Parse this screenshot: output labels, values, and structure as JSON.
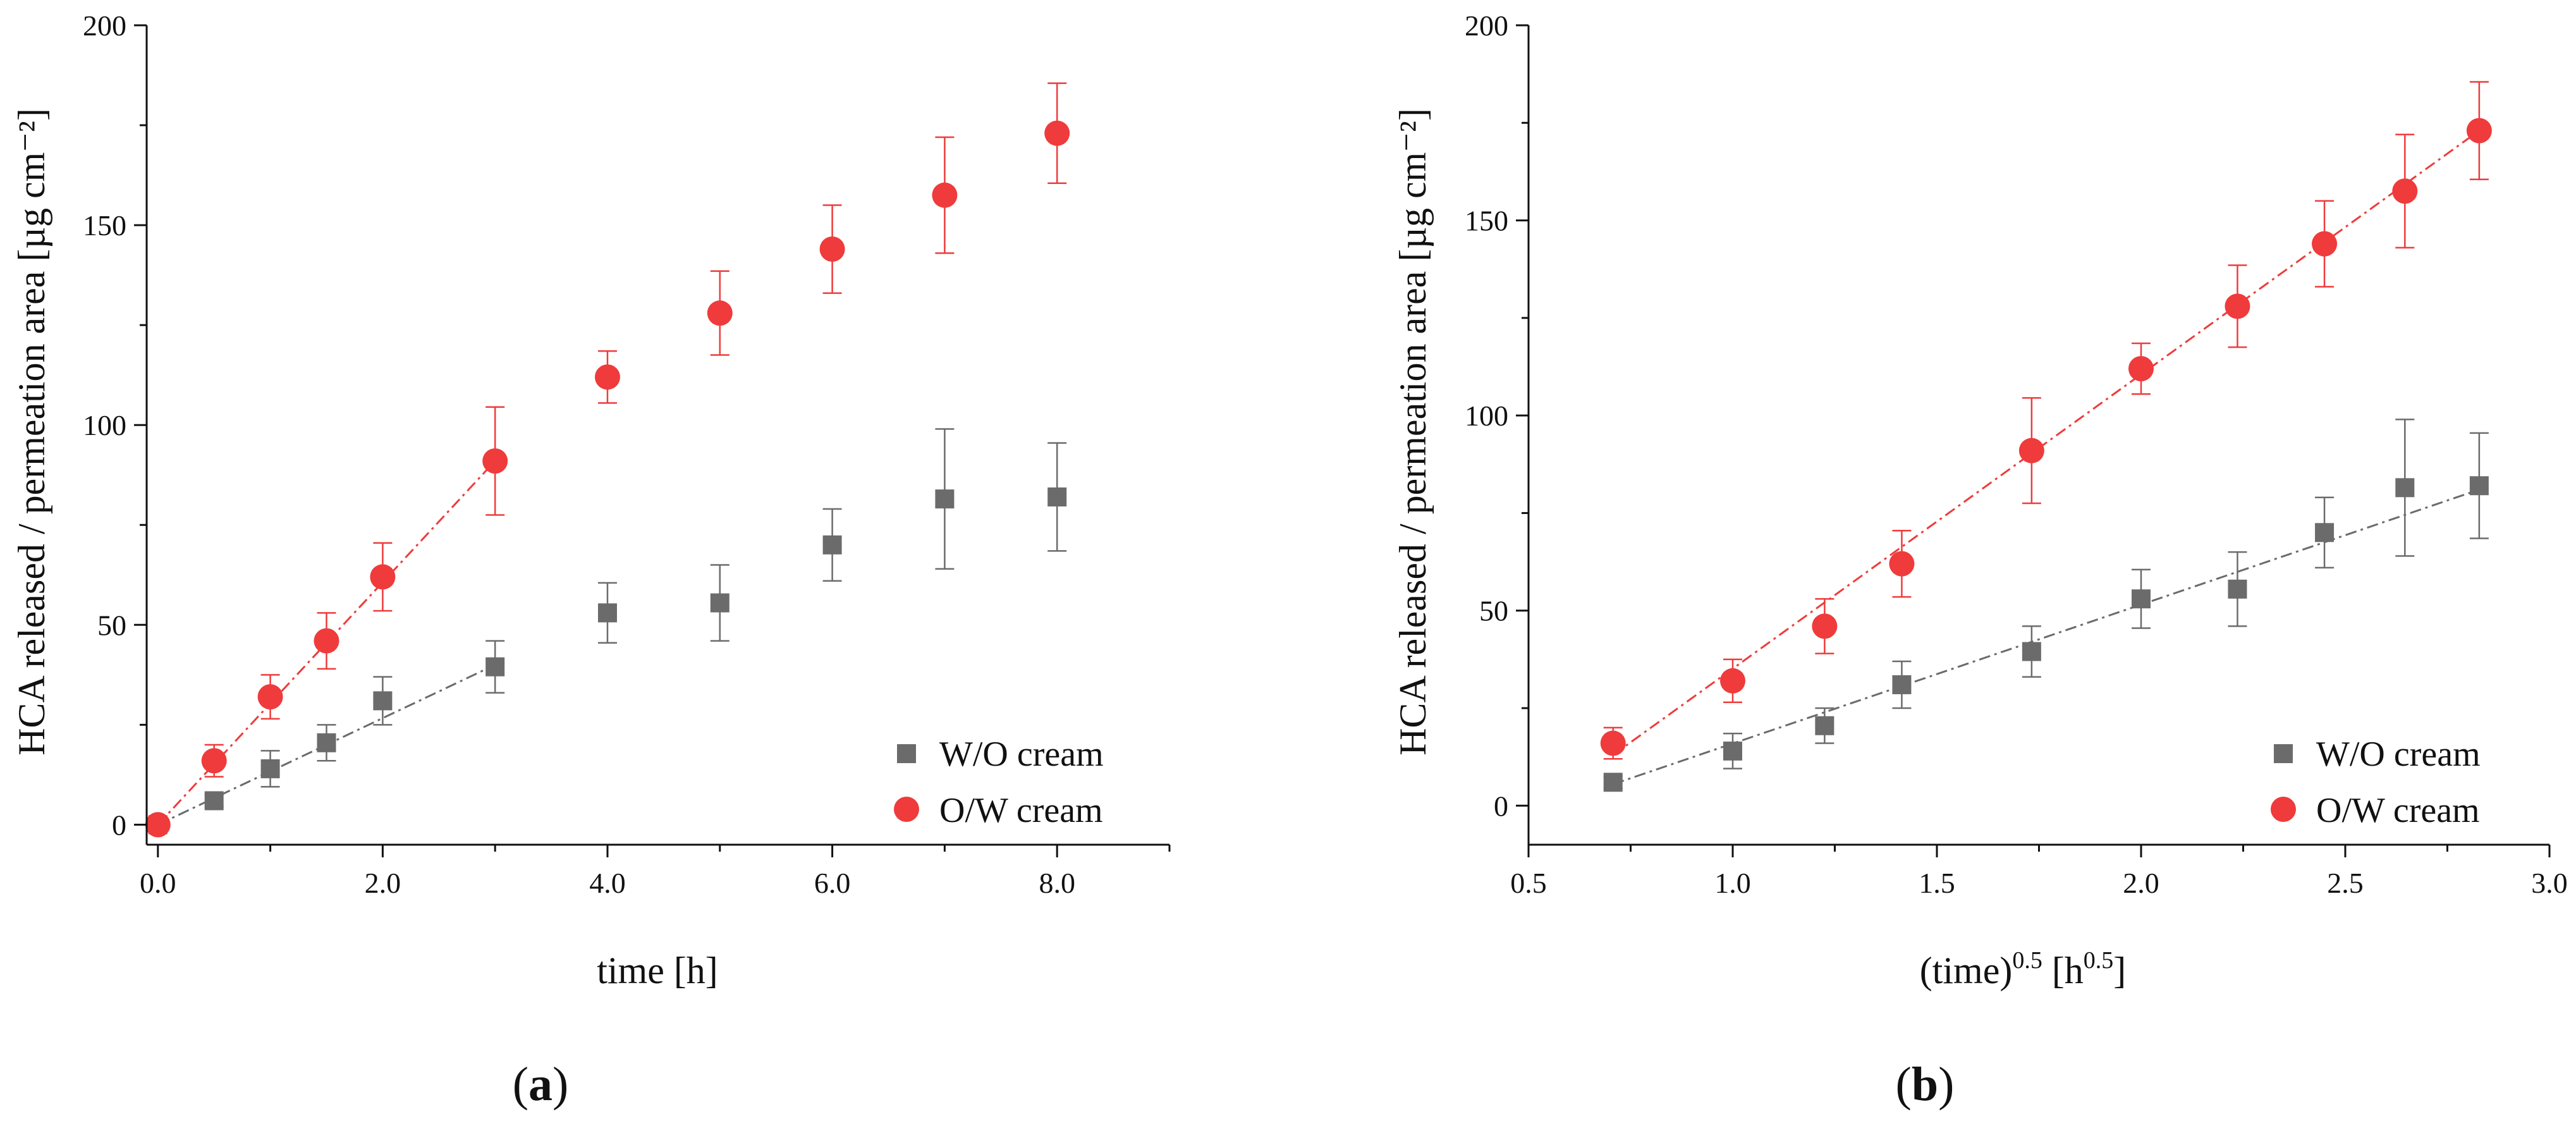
{
  "colors": {
    "wo": "#6b6b6b",
    "ow": "#ef3b3b",
    "axis": "#111111"
  },
  "chart_data": [
    {
      "type": "scatter",
      "panel_label": "a",
      "xlabel": "time [h]",
      "ylabel": "HCA released / permeation area [µg cm⁻²]",
      "xlim": [
        -0.1,
        9.0
      ],
      "ylim": [
        -5,
        200
      ],
      "xticks": [
        0,
        2,
        4,
        6,
        8
      ],
      "xtick_labels": [
        "0.0",
        "2.0",
        "4.0",
        "6.0",
        "8.0"
      ],
      "yticks": [
        0,
        50,
        100,
        150,
        200
      ],
      "ytick_labels": [
        "0",
        "50",
        "100",
        "150",
        "200"
      ],
      "legend_position": "bottom-right",
      "series": [
        {
          "name": "W/O cream",
          "marker": "square",
          "color_key": "wo",
          "x": [
            0,
            0.5,
            1,
            1.5,
            2,
            3,
            4,
            5,
            6,
            7,
            8
          ],
          "y": [
            0,
            6,
            14,
            20.5,
            31,
            39.5,
            53,
            55.5,
            70,
            81.5,
            82
          ],
          "err": [
            0,
            1.5,
            4.5,
            4.5,
            6,
            6.5,
            7.5,
            9.5,
            9,
            17.5,
            13.5
          ],
          "fit": {
            "x": [
              0,
              3
            ],
            "y": [
              0,
              40
            ]
          }
        },
        {
          "name": "O/W cream",
          "marker": "circle",
          "color_key": "ow",
          "x": [
            0,
            0.5,
            1,
            1.5,
            2,
            3,
            4,
            5,
            6,
            7,
            8
          ],
          "y": [
            0,
            16,
            32,
            46,
            62,
            91,
            112,
            128,
            144,
            157.5,
            173
          ],
          "err": [
            0,
            4,
            5.5,
            7,
            8.5,
            13.5,
            6.5,
            10.5,
            11,
            14.5,
            12.5
          ],
          "fit": {
            "x": [
              0,
              3
            ],
            "y": [
              0,
              91
            ]
          }
        }
      ]
    },
    {
      "type": "scatter",
      "panel_label": "b",
      "xlabel_main": "(time)",
      "xlabel_sup1": "0.5",
      "xlabel_mid": " [h",
      "xlabel_sup2": "0.5",
      "xlabel_end": "]",
      "ylabel": "HCA released / permeation area [µg cm⁻²]",
      "xlim": [
        0.5,
        3.0
      ],
      "ylim": [
        -10,
        200
      ],
      "xticks": [
        0.5,
        1.0,
        1.5,
        2.0,
        2.5,
        3.0
      ],
      "xtick_labels": [
        "0.5",
        "1.0",
        "1.5",
        "2.0",
        "2.5",
        "3.0"
      ],
      "yticks": [
        0,
        50,
        100,
        150,
        200
      ],
      "ytick_labels": [
        "0",
        "50",
        "100",
        "150",
        "200"
      ],
      "legend_position": "bottom-right",
      "series": [
        {
          "name": "W/O cream",
          "marker": "square",
          "color_key": "wo",
          "x": [
            0.707,
            1.0,
            1.225,
            1.414,
            1.732,
            2.0,
            2.236,
            2.449,
            2.646,
            2.828
          ],
          "y": [
            6,
            14,
            20.5,
            31,
            39.5,
            53,
            55.5,
            70,
            81.5,
            82
          ],
          "err": [
            1.5,
            4.5,
            4.5,
            6,
            6.5,
            7.5,
            9.5,
            9,
            17.5,
            13.5
          ],
          "fit": {
            "x": [
              0.707,
              2.828
            ],
            "y": [
              5.5,
              81
            ]
          }
        },
        {
          "name": "O/W cream",
          "marker": "circle",
          "color_key": "ow",
          "x": [
            0.707,
            1.0,
            1.225,
            1.414,
            1.732,
            2.0,
            2.236,
            2.449,
            2.646,
            2.828
          ],
          "y": [
            16,
            32,
            46,
            62,
            91,
            112,
            128,
            144,
            157.5,
            173
          ],
          "err": [
            4,
            5.5,
            7,
            8.5,
            13.5,
            6.5,
            10.5,
            11,
            14.5,
            12.5
          ],
          "fit": {
            "x": [
              0.707,
              2.828
            ],
            "y": [
              13,
              173
            ]
          }
        }
      ]
    }
  ]
}
